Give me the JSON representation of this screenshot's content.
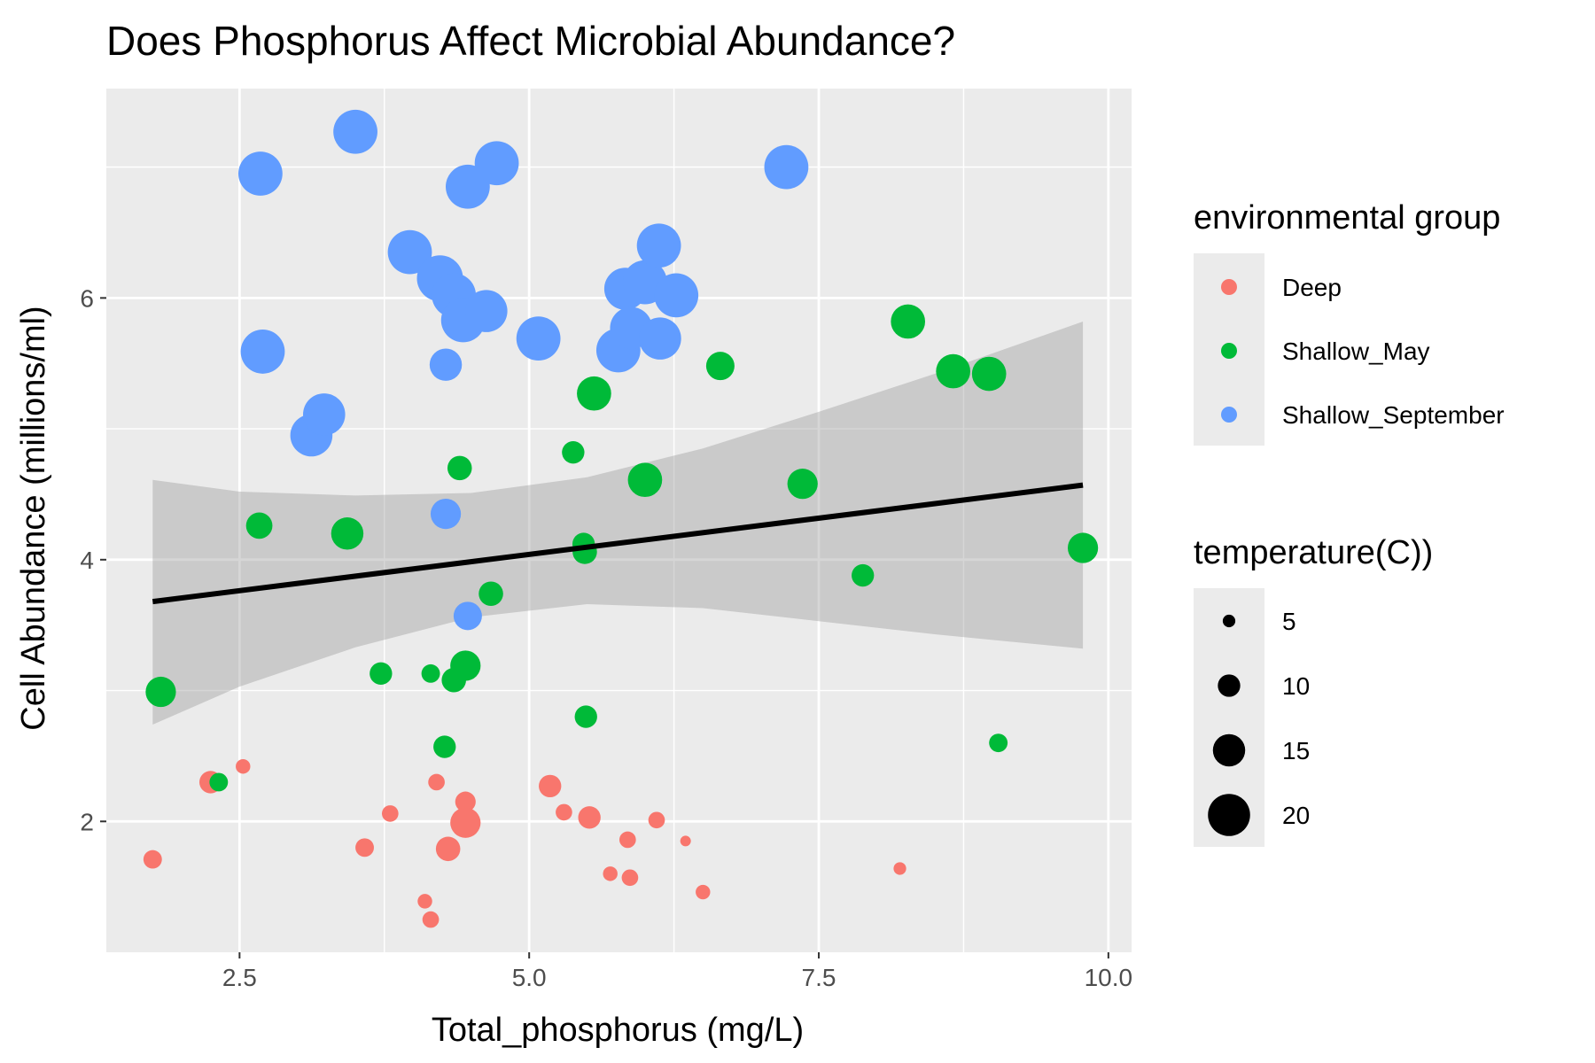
{
  "chart_data": {
    "type": "scatter",
    "title": "Does Phosphorus Affect Microbial Abundance?",
    "xlabel": "Total_phosphorus (mg/L)",
    "ylabel": "Cell Abundance (millions/ml)",
    "xlim": [
      1.35,
      10.2
    ],
    "ylim": [
      1.0,
      7.6
    ],
    "x_ticks": [
      2.5,
      5.0,
      7.5,
      10.0
    ],
    "x_tick_labels": [
      "2.5",
      "5.0",
      "7.5",
      "10.0"
    ],
    "y_ticks": [
      2,
      4,
      6
    ],
    "y_tick_labels": [
      "2",
      "4",
      "6"
    ],
    "grid": true,
    "legend_position": "right",
    "colors": {
      "Deep": "#F8766D",
      "Shallow_May": "#00BA38",
      "Shallow_September": "#619CFF",
      "panel": "#EBEBEB",
      "grid": "#FFFFFF",
      "ribbon": "#999999",
      "fit": "#000000"
    },
    "color_legend": {
      "title": "environmental group",
      "entries": [
        "Deep",
        "Shallow_May",
        "Shallow_September"
      ]
    },
    "size_legend": {
      "title": "temperature(C))",
      "entries": [
        5,
        10,
        15,
        20
      ]
    },
    "temperature_range": [
      4,
      22
    ],
    "trend_line": {
      "x": [
        1.75,
        9.78
      ],
      "y": [
        3.68,
        4.57
      ],
      "ribbon": {
        "x": [
          1.75,
          2.5,
          3.5,
          4.5,
          5.5,
          6.5,
          7.5,
          8.5,
          9.78
        ],
        "lower": [
          2.74,
          3.03,
          3.33,
          3.56,
          3.66,
          3.63,
          3.53,
          3.43,
          3.32
        ],
        "upper": [
          4.61,
          4.52,
          4.49,
          4.51,
          4.63,
          4.85,
          5.13,
          5.42,
          5.82
        ]
      }
    },
    "series": [
      {
        "name": "Deep",
        "points": [
          {
            "x": 1.75,
            "y": 1.71,
            "temp": 8
          },
          {
            "x": 2.25,
            "y": 2.3,
            "temp": 10
          },
          {
            "x": 2.53,
            "y": 2.42,
            "temp": 6
          },
          {
            "x": 3.58,
            "y": 1.8,
            "temp": 8
          },
          {
            "x": 3.8,
            "y": 2.06,
            "temp": 7
          },
          {
            "x": 4.1,
            "y": 1.39,
            "temp": 6
          },
          {
            "x": 4.15,
            "y": 1.25,
            "temp": 7
          },
          {
            "x": 4.2,
            "y": 2.3,
            "temp": 7
          },
          {
            "x": 4.3,
            "y": 1.79,
            "temp": 11
          },
          {
            "x": 4.45,
            "y": 2.15,
            "temp": 9
          },
          {
            "x": 4.45,
            "y": 1.99,
            "temp": 14
          },
          {
            "x": 5.18,
            "y": 2.27,
            "temp": 10
          },
          {
            "x": 5.3,
            "y": 2.07,
            "temp": 7
          },
          {
            "x": 5.52,
            "y": 2.03,
            "temp": 10
          },
          {
            "x": 5.7,
            "y": 1.6,
            "temp": 6
          },
          {
            "x": 5.85,
            "y": 1.86,
            "temp": 7
          },
          {
            "x": 5.87,
            "y": 1.57,
            "temp": 7
          },
          {
            "x": 6.1,
            "y": 2.01,
            "temp": 7
          },
          {
            "x": 6.35,
            "y": 1.85,
            "temp": 4
          },
          {
            "x": 6.5,
            "y": 1.46,
            "temp": 6
          },
          {
            "x": 8.2,
            "y": 1.64,
            "temp": 5
          }
        ]
      },
      {
        "name": "Shallow_May",
        "points": [
          {
            "x": 1.82,
            "y": 2.99,
            "temp": 14
          },
          {
            "x": 2.32,
            "y": 2.3,
            "temp": 8
          },
          {
            "x": 2.67,
            "y": 4.26,
            "temp": 12
          },
          {
            "x": 3.43,
            "y": 4.2,
            "temp": 15
          },
          {
            "x": 3.72,
            "y": 3.13,
            "temp": 10
          },
          {
            "x": 4.15,
            "y": 3.13,
            "temp": 8
          },
          {
            "x": 4.27,
            "y": 2.57,
            "temp": 10
          },
          {
            "x": 4.35,
            "y": 3.08,
            "temp": 11
          },
          {
            "x": 4.4,
            "y": 4.7,
            "temp": 11
          },
          {
            "x": 4.45,
            "y": 3.19,
            "temp": 14
          },
          {
            "x": 4.67,
            "y": 3.74,
            "temp": 11
          },
          {
            "x": 5.38,
            "y": 4.82,
            "temp": 10
          },
          {
            "x": 5.47,
            "y": 4.12,
            "temp": 10
          },
          {
            "x": 5.48,
            "y": 4.06,
            "temp": 11
          },
          {
            "x": 5.49,
            "y": 2.8,
            "temp": 10
          },
          {
            "x": 5.56,
            "y": 5.27,
            "temp": 16
          },
          {
            "x": 6.0,
            "y": 4.61,
            "temp": 16
          },
          {
            "x": 6.65,
            "y": 5.48,
            "temp": 13
          },
          {
            "x": 7.36,
            "y": 4.58,
            "temp": 14
          },
          {
            "x": 7.88,
            "y": 3.88,
            "temp": 10
          },
          {
            "x": 8.27,
            "y": 5.82,
            "temp": 16
          },
          {
            "x": 8.66,
            "y": 5.44,
            "temp": 16
          },
          {
            "x": 8.97,
            "y": 5.42,
            "temp": 16
          },
          {
            "x": 9.05,
            "y": 2.6,
            "temp": 8
          },
          {
            "x": 9.78,
            "y": 4.09,
            "temp": 14
          }
        ]
      },
      {
        "name": "Shallow_September",
        "points": [
          {
            "x": 2.68,
            "y": 6.95,
            "temp": 21
          },
          {
            "x": 2.7,
            "y": 5.59,
            "temp": 21
          },
          {
            "x": 3.12,
            "y": 4.95,
            "temp": 20
          },
          {
            "x": 3.23,
            "y": 5.11,
            "temp": 20
          },
          {
            "x": 3.5,
            "y": 7.27,
            "temp": 21
          },
          {
            "x": 3.97,
            "y": 6.35,
            "temp": 21
          },
          {
            "x": 4.23,
            "y": 6.15,
            "temp": 22
          },
          {
            "x": 4.28,
            "y": 5.49,
            "temp": 15
          },
          {
            "x": 4.28,
            "y": 4.35,
            "temp": 14
          },
          {
            "x": 4.35,
            "y": 6.02,
            "temp": 21
          },
          {
            "x": 4.43,
            "y": 5.83,
            "temp": 21
          },
          {
            "x": 4.47,
            "y": 6.85,
            "temp": 21
          },
          {
            "x": 4.47,
            "y": 3.57,
            "temp": 13
          },
          {
            "x": 4.63,
            "y": 5.9,
            "temp": 20
          },
          {
            "x": 4.72,
            "y": 7.03,
            "temp": 21
          },
          {
            "x": 5.08,
            "y": 5.69,
            "temp": 21
          },
          {
            "x": 5.77,
            "y": 5.6,
            "temp": 21
          },
          {
            "x": 5.83,
            "y": 6.07,
            "temp": 20
          },
          {
            "x": 5.88,
            "y": 5.77,
            "temp": 20
          },
          {
            "x": 6.0,
            "y": 6.12,
            "temp": 21
          },
          {
            "x": 6.13,
            "y": 5.69,
            "temp": 20
          },
          {
            "x": 6.12,
            "y": 6.4,
            "temp": 21
          },
          {
            "x": 6.27,
            "y": 6.02,
            "temp": 21
          },
          {
            "x": 7.22,
            "y": 7.0,
            "temp": 21
          }
        ]
      }
    ]
  }
}
